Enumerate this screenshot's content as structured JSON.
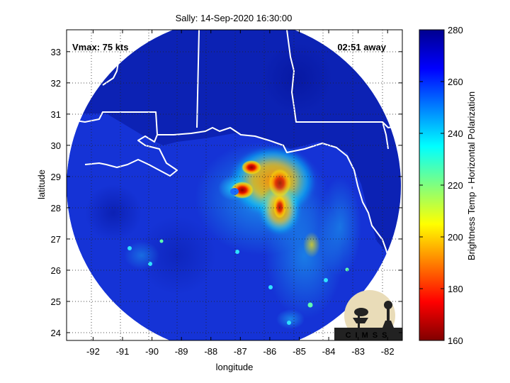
{
  "figure": {
    "title": "Sally: 14-Sep-2020 16:30:00",
    "xlabel": "longitude",
    "ylabel": "latitude",
    "vmax_label": "Vmax: 75 kts",
    "time_away_label": "02:51 away",
    "logo_text": "CIMSS"
  },
  "chart_data": {
    "type": "heatmap",
    "x_ticks": [
      -92,
      -91,
      -90,
      -89,
      -88,
      -87,
      -86,
      -85,
      -84,
      -83,
      -82
    ],
    "y_ticks": [
      24,
      25,
      26,
      27,
      28,
      29,
      30,
      31,
      32,
      33
    ],
    "xlim": [
      -92.9,
      -81.5
    ],
    "ylim": [
      23.75,
      33.7
    ],
    "grid": true,
    "colorbar": {
      "label": "Brightness Temp - Horizontal Polarization",
      "ticks": [
        160,
        180,
        200,
        220,
        240,
        260,
        280
      ],
      "range": [
        160,
        280
      ],
      "colormap": "jet"
    },
    "storm_center": {
      "lon": -86.8,
      "lat": 28.6
    }
  },
  "colors": {
    "ocean_background": "#1533d6",
    "land_outline": "#ffffff",
    "grid": "#000000"
  }
}
